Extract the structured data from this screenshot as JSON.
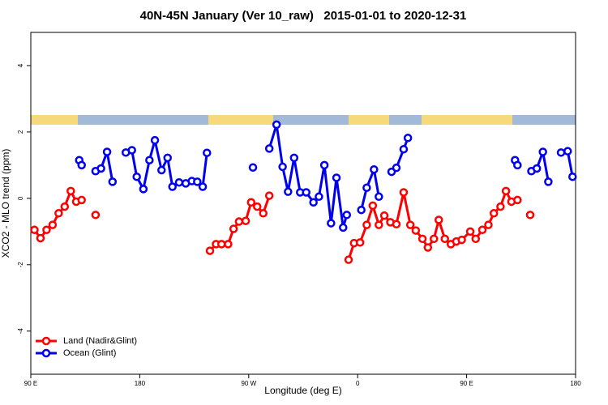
{
  "chart_data": {
    "type": "line",
    "title": "40N-45N January (Ver 10_raw)   2015-01-01 to 2020-12-31",
    "xlabel": "Longitude (deg E)",
    "ylabel": "XCO2 - MLO trend (ppm)",
    "xlim": [
      90,
      540
    ],
    "ylim": [
      -5.3,
      5
    ],
    "xticks": [
      {
        "value": 90,
        "label": "90 E"
      },
      {
        "value": 180,
        "label": "180"
      },
      {
        "value": 270,
        "label": "90 W"
      },
      {
        "value": 360,
        "label": "0"
      },
      {
        "value": 450,
        "label": "90 E"
      },
      {
        "value": 540,
        "label": "180"
      }
    ],
    "yticks": [
      -4,
      -2,
      0,
      2,
      4
    ],
    "legend": "bottom-left",
    "series": [
      {
        "name": "Land (Nadir&Glint)",
        "color": "#ff0000",
        "x": [
          93,
          98,
          103,
          108,
          113,
          118,
          123,
          127.5,
          132,
          137,
          143.5,
          150,
          238,
          243,
          247.5,
          253,
          257.5,
          262,
          267.5,
          272,
          277,
          282,
          287,
          330,
          352.5,
          357,
          362,
          367.5,
          372.5,
          377.5,
          382,
          387,
          392,
          398,
          403.5,
          408,
          413.5,
          418,
          423,
          427,
          432,
          437,
          441.5,
          446,
          453,
          457.5,
          463,
          468,
          472.5,
          478,
          482.5,
          487,
          492,
          497,
          502.5
        ],
        "values": [
          -0.95,
          -1.2,
          -0.95,
          -0.8,
          -0.45,
          -0.25,
          0.22,
          -0.1,
          -0.05,
          null,
          -0.5,
          null,
          -1.58,
          -1.38,
          -1.38,
          -1.38,
          -0.92,
          -0.7,
          -0.68,
          -0.12,
          -0.25,
          -0.45,
          0.08,
          null,
          -1.85,
          -1.35,
          -1.33,
          -0.8,
          -0.22,
          -0.8,
          -0.52,
          -0.72,
          -0.78,
          0.18,
          -0.8,
          -0.97,
          -1.22,
          -1.48,
          -1.22,
          -0.65,
          -1.22,
          -1.38,
          -1.3,
          -1.25,
          -1.0,
          -1.22,
          -0.95,
          -0.8,
          -0.45,
          -0.25,
          0.22,
          -0.1,
          -0.05,
          null,
          -0.5
        ]
      },
      {
        "name": "Ocean (Glint)",
        "color": "#0000ee",
        "x": [
          130,
          132,
          137,
          143.5,
          148,
          153,
          157.5,
          162,
          168.5,
          173.5,
          177.5,
          183,
          188,
          192.5,
          198,
          203,
          207,
          212.5,
          218,
          223,
          227.5,
          232,
          235.5,
          250,
          273.5,
          280,
          287,
          293,
          298,
          302.5,
          307.5,
          312.5,
          317.5,
          323.5,
          328,
          332.5,
          338,
          342.5,
          348,
          351,
          355,
          363,
          367.5,
          373.5,
          377.5,
          380,
          388,
          392,
          398,
          401.5,
          450,
          490,
          492,
          497,
          503.5,
          508,
          513,
          517.5,
          522,
          528,
          533.5,
          537.5
        ],
        "values": [
          1.15,
          1.0,
          null,
          0.82,
          0.9,
          1.4,
          0.5,
          null,
          1.38,
          1.45,
          0.65,
          0.28,
          1.15,
          1.75,
          0.85,
          1.22,
          0.35,
          0.48,
          0.45,
          0.52,
          0.5,
          0.35,
          1.37,
          null,
          0.93,
          null,
          1.5,
          2.22,
          0.95,
          0.2,
          1.22,
          0.18,
          0.18,
          -0.12,
          0.05,
          1.0,
          -0.75,
          0.62,
          -0.88,
          -0.5,
          null,
          -0.35,
          0.32,
          0.87,
          0.05,
          null,
          0.8,
          0.92,
          1.48,
          1.82,
          null,
          1.15,
          1.0,
          null,
          0.82,
          0.9,
          1.4,
          0.5,
          null,
          1.38,
          1.42,
          0.65
        ]
      }
    ]
  }
}
